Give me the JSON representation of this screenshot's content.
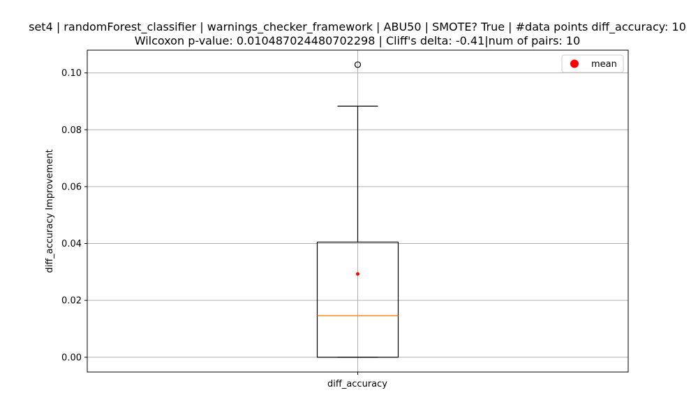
{
  "chart_data": {
    "type": "box",
    "title_lines": [
      "set4 | randomForest_classifier | warnings_checker_framework | ABU50 | SMOTE? True | #data points diff_accuracy: 10",
      "Wilcoxon p-value: 0.010487024480702298 | Cliff's delta: -0.41|num of pairs: 10"
    ],
    "xlabel": "",
    "ylabel": "diff_accuracy Improvement",
    "categories": [
      "diff_accuracy"
    ],
    "ylim": [
      -0.0052,
      0.108
    ],
    "yticks": [
      0.0,
      0.02,
      0.04,
      0.06,
      0.08,
      0.1
    ],
    "ytick_labels": [
      "0.00",
      "0.02",
      "0.04",
      "0.06",
      "0.08",
      "0.10"
    ],
    "grid": true,
    "legend": {
      "position": "top-right",
      "entries": [
        {
          "label": "mean",
          "color": "#ff0000",
          "marker": "circle"
        }
      ]
    },
    "boxes": [
      {
        "category": "diff_accuracy",
        "whisker_low": 0.0,
        "q1": 0.0,
        "median": 0.0146,
        "q3": 0.0405,
        "whisker_high": 0.0883,
        "mean": 0.0293,
        "outliers": [
          0.1029
        ]
      }
    ],
    "colors": {
      "box": "#000000",
      "median": "#ff7f0e",
      "mean": "#ff0000",
      "grid": "#b0b0b0"
    }
  }
}
